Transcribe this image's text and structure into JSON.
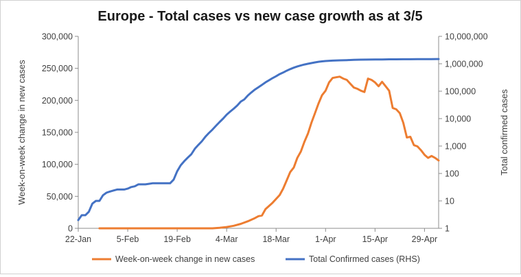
{
  "chart_data": {
    "type": "line",
    "title": "Europe - Total cases vs new case growth as at 3/5",
    "y_left_label": "Week-on-week change in new cases",
    "y_right_label": "Total  confirmed cases",
    "y_left_ticks": [
      "0",
      "50,000",
      "100,000",
      "150,000",
      "200,000",
      "250,000",
      "300,000"
    ],
    "y_left_range": [
      0,
      300000
    ],
    "y_right_scale": "log",
    "y_right_ticks": [
      "1",
      "10",
      "100",
      "1,000",
      "10,000",
      "100,000",
      "1,000,000",
      "10,000,000"
    ],
    "y_right_range": [
      1,
      10000000
    ],
    "x_ticks": [
      "22-Jan",
      "5-Feb",
      "19-Feb",
      "4-Mar",
      "18-Mar",
      "1-Apr",
      "15-Apr",
      "29-Apr"
    ],
    "x_range_days": [
      0,
      102
    ],
    "x_tick_step_days": 14,
    "legend_position": "bottom",
    "grid": false,
    "series": [
      {
        "name": "Week-on-week change in new cases",
        "axis": "left",
        "color": "#ED7D31",
        "points": [
          [
            6,
            0
          ],
          [
            10,
            0
          ],
          [
            15,
            0
          ],
          [
            20,
            0
          ],
          [
            25,
            0
          ],
          [
            30,
            0
          ],
          [
            34,
            0
          ],
          [
            38,
            0
          ],
          [
            40,
            800
          ],
          [
            42,
            2000
          ],
          [
            44,
            4000
          ],
          [
            46,
            7000
          ],
          [
            48,
            11000
          ],
          [
            50,
            16000
          ],
          [
            51,
            19000
          ],
          [
            52,
            20000
          ],
          [
            53,
            30000
          ],
          [
            55,
            40000
          ],
          [
            57,
            52000
          ],
          [
            58,
            62000
          ],
          [
            59,
            75000
          ],
          [
            60,
            88000
          ],
          [
            61,
            95000
          ],
          [
            62,
            110000
          ],
          [
            63,
            120000
          ],
          [
            64,
            135000
          ],
          [
            65,
            148000
          ],
          [
            66,
            165000
          ],
          [
            67,
            180000
          ],
          [
            68,
            195000
          ],
          [
            69,
            208000
          ],
          [
            70,
            215000
          ],
          [
            71,
            228000
          ],
          [
            72,
            235000
          ],
          [
            73,
            236000
          ],
          [
            74,
            237000
          ],
          [
            75,
            234000
          ],
          [
            76,
            232000
          ],
          [
            77,
            226000
          ],
          [
            78,
            220000
          ],
          [
            79,
            218000
          ],
          [
            80,
            215000
          ],
          [
            81,
            213000
          ],
          [
            82,
            234000
          ],
          [
            83,
            232000
          ],
          [
            84,
            228000
          ],
          [
            85,
            222000
          ],
          [
            86,
            229000
          ],
          [
            87,
            222000
          ],
          [
            88,
            215000
          ],
          [
            89,
            188000
          ],
          [
            90,
            186000
          ],
          [
            91,
            180000
          ],
          [
            92,
            165000
          ],
          [
            93,
            142000
          ],
          [
            94,
            143000
          ],
          [
            95,
            130000
          ],
          [
            96,
            128000
          ],
          [
            97,
            122000
          ],
          [
            98,
            115000
          ],
          [
            99,
            110000
          ],
          [
            100,
            113000
          ],
          [
            101,
            110000
          ],
          [
            102,
            106000
          ]
        ]
      },
      {
        "name": "Total Confirmed cases (RHS)",
        "axis": "right",
        "color": "#4472C4",
        "points": [
          [
            0,
            2
          ],
          [
            1,
            3
          ],
          [
            2,
            3
          ],
          [
            3,
            4
          ],
          [
            4,
            8
          ],
          [
            5,
            10
          ],
          [
            6,
            10
          ],
          [
            7,
            16
          ],
          [
            8,
            20
          ],
          [
            9,
            22
          ],
          [
            10,
            24
          ],
          [
            11,
            26
          ],
          [
            13,
            26
          ],
          [
            14,
            28
          ],
          [
            15,
            32
          ],
          [
            16,
            34
          ],
          [
            17,
            40
          ],
          [
            19,
            40
          ],
          [
            20,
            42
          ],
          [
            21,
            44
          ],
          [
            26,
            44
          ],
          [
            27,
            60
          ],
          [
            28,
            120
          ],
          [
            29,
            200
          ],
          [
            30,
            280
          ],
          [
            31,
            380
          ],
          [
            32,
            500
          ],
          [
            33,
            800
          ],
          [
            34,
            1100
          ],
          [
            35,
            1500
          ],
          [
            36,
            2200
          ],
          [
            37,
            3000
          ],
          [
            38,
            4000
          ],
          [
            39,
            5500
          ],
          [
            40,
            7500
          ],
          [
            41,
            10000
          ],
          [
            42,
            14000
          ],
          [
            43,
            18000
          ],
          [
            44,
            23000
          ],
          [
            45,
            30000
          ],
          [
            46,
            42000
          ],
          [
            47,
            50000
          ],
          [
            48,
            70000
          ],
          [
            49,
            90000
          ],
          [
            50,
            115000
          ],
          [
            51,
            140000
          ],
          [
            52,
            170000
          ],
          [
            53,
            210000
          ],
          [
            54,
            250000
          ],
          [
            55,
            300000
          ],
          [
            56,
            350000
          ],
          [
            57,
            420000
          ],
          [
            58,
            480000
          ],
          [
            59,
            560000
          ],
          [
            60,
            640000
          ],
          [
            61,
            720000
          ],
          [
            62,
            800000
          ],
          [
            63,
            870000
          ],
          [
            64,
            940000
          ],
          [
            65,
            1000000
          ],
          [
            66,
            1060000
          ],
          [
            67,
            1120000
          ],
          [
            68,
            1180000
          ],
          [
            69,
            1220000
          ],
          [
            70,
            1260000
          ],
          [
            72,
            1300000
          ],
          [
            74,
            1330000
          ],
          [
            76,
            1360000
          ],
          [
            78,
            1390000
          ],
          [
            80,
            1410000
          ],
          [
            82,
            1420000
          ],
          [
            84,
            1430000
          ],
          [
            86,
            1440000
          ],
          [
            88,
            1450000
          ],
          [
            90,
            1450000
          ],
          [
            92,
            1460000
          ],
          [
            94,
            1460000
          ],
          [
            96,
            1470000
          ],
          [
            98,
            1470000
          ],
          [
            100,
            1480000
          ],
          [
            102,
            1490000
          ]
        ]
      }
    ]
  }
}
